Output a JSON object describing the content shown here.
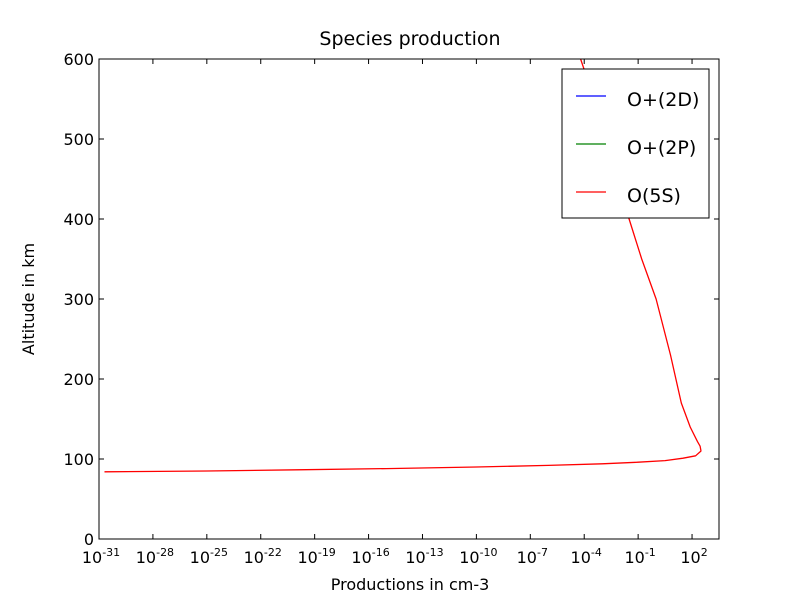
{
  "chart_data": {
    "type": "line",
    "title": "Species production",
    "xlabel": "Productions in cm-3",
    "ylabel": "Altitude in km",
    "xscale": "log",
    "xlim_log10": [
      -31,
      3.5
    ],
    "ylim": [
      0,
      600
    ],
    "x_ticks": [
      {
        "base": "10",
        "exp": "-31"
      },
      {
        "base": "10",
        "exp": "-28"
      },
      {
        "base": "10",
        "exp": "-25"
      },
      {
        "base": "10",
        "exp": "-22"
      },
      {
        "base": "10",
        "exp": "-19"
      },
      {
        "base": "10",
        "exp": "-16"
      },
      {
        "base": "10",
        "exp": "-13"
      },
      {
        "base": "10",
        "exp": "-10"
      },
      {
        "base": "10",
        "exp": "-7"
      },
      {
        "base": "10",
        "exp": "-4"
      },
      {
        "base": "10",
        "exp": "-1"
      },
      {
        "base": "10",
        "exp": "2"
      }
    ],
    "y_ticks": [
      "0",
      "100",
      "200",
      "300",
      "400",
      "500",
      "600"
    ],
    "grid": false,
    "legend_position": "top-right",
    "series": [
      {
        "name": "O+(2D)",
        "color": "#0000ff",
        "log10_x": [],
        "y": []
      },
      {
        "name": "O+(2P)",
        "color": "#008000",
        "log10_x": [],
        "y": []
      },
      {
        "name": "O(5S)",
        "color": "#ff0000",
        "log10_x": [
          -30.7,
          -25,
          -20,
          -15,
          -10,
          -6,
          -3,
          -1,
          0.5,
          1.5,
          2.2,
          2.5,
          2.45,
          2.3,
          1.9,
          1.4,
          0.8,
          0.0,
          -0.8,
          -1.5,
          -2.2,
          -2.8,
          -3.6,
          -4.2
        ],
        "y": [
          84,
          85,
          86.5,
          88,
          90,
          92,
          94,
          96,
          98,
          101,
          104,
          110,
          116,
          122,
          140,
          170,
          230,
          300,
          350,
          400,
          450,
          500,
          560,
          600
        ]
      }
    ]
  }
}
